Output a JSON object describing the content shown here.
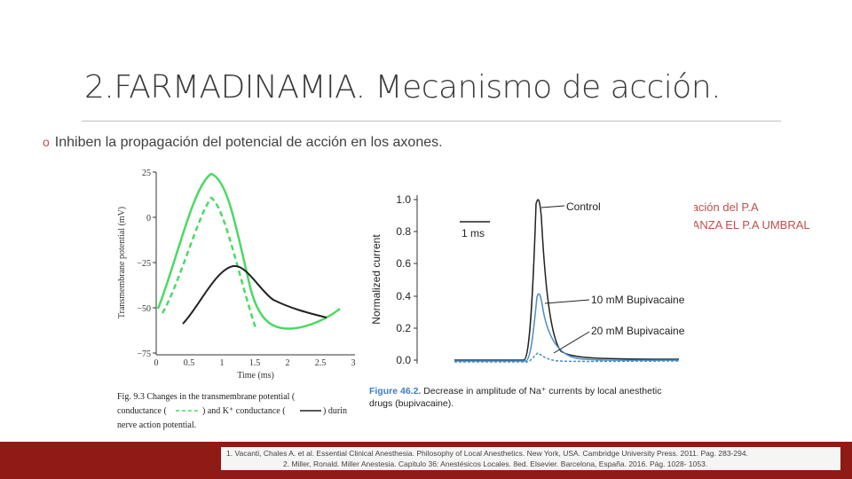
{
  "slide": {
    "title": "2.FARMADINAMIA. Mecanismo de acción.",
    "bullet_marker": "o",
    "bullet_text": "Inhiben la propagación del potencial de acción en los axones.",
    "note_line1": "↓ la elevación  del P.A",
    "note_line2": "NO ALCANZA EL P.A UMBRAL"
  },
  "figure1": {
    "ylabel": "Transmembrane potential (mV)",
    "xlabel": "Time (ms)",
    "yticks": [
      "25",
      "0",
      "−25",
      "−50",
      "−75"
    ],
    "xticks": [
      "0",
      "0.5",
      "1",
      "1.5",
      "2",
      "2.5",
      "3"
    ],
    "caption_line1": "Fig. 9.3  Changes in the transmembrane potential (",
    "caption_line2": "conductance (",
    "caption_line2b": ") and K⁺ conductance (",
    "caption_line2c": ") durin",
    "caption_line3": "nerve action potential.",
    "colors": {
      "na": "#4cd964",
      "k": "#4cd964",
      "potential": "#222222"
    }
  },
  "figure2": {
    "ylabel": "Normalized current",
    "yticks": [
      "1.0",
      "0.8",
      "0.6",
      "0.4",
      "0.2",
      "0.0"
    ],
    "scale_label": "1 ms",
    "label_control": "Control",
    "label_10mm": "10 mM Bupivacaine",
    "label_20mm": "20 mM Bupivacaine",
    "caption_prefix": "Figure 46.2.",
    "caption_line1": " Decrease in amplitude of Na⁺ currents by local anesthetic",
    "caption_line2": "drugs (bupivacaine).",
    "colors": {
      "control": "#222222",
      "bupi10": "#4a8fc7",
      "bupi20": "#4a8fc7",
      "caption": "#3a7fc2"
    }
  },
  "references": {
    "ref1": "1.   Vacanti, Chales A. et al. Essential Clinical Anesthesia. Philosophy of Local Anesthetics. New York, USA. Cambridge University Press. 2011. Pag. 283-294.",
    "ref2": "2.   Miller, Ronald. Miller Anestesia. Capitulo 36: Anestésicos Locales. 8ed. Elsevier. Barcelona, España. 2016. Pág. 1028- 1053."
  },
  "theme": {
    "accent": "#c0504d",
    "footer": "#8e1b14"
  }
}
